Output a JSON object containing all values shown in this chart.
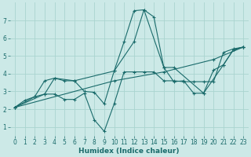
{
  "xlabel": "Humidex (Indice chaleur)",
  "xlim": [
    -0.5,
    23.5
  ],
  "ylim": [
    0.5,
    8.0
  ],
  "yticks": [
    1,
    2,
    3,
    4,
    5,
    6,
    7
  ],
  "xticks": [
    0,
    1,
    2,
    3,
    4,
    5,
    6,
    7,
    8,
    9,
    10,
    11,
    12,
    13,
    14,
    15,
    16,
    17,
    18,
    19,
    20,
    21,
    22,
    23
  ],
  "background_color": "#cce9e7",
  "grid_color": "#aad4d0",
  "line_color": "#1a6b6b",
  "lines": [
    {
      "x": [
        0,
        1,
        2,
        3,
        4,
        5,
        6,
        7,
        8,
        9,
        10,
        11,
        12,
        13,
        14,
        15,
        16,
        17,
        18,
        19,
        20,
        21,
        22,
        23
      ],
      "y": [
        2.1,
        2.5,
        2.7,
        3.6,
        3.75,
        3.6,
        3.6,
        3.0,
        2.95,
        2.3,
        4.15,
        5.8,
        7.55,
        7.6,
        7.2,
        4.35,
        3.55,
        3.6,
        2.9,
        2.9,
        4.2,
        4.5,
        5.35,
        5.5
      ]
    },
    {
      "x": [
        0,
        2,
        3,
        4,
        5,
        6,
        7,
        8,
        9,
        10,
        11,
        12,
        13,
        14,
        15,
        16,
        17,
        18,
        19,
        20,
        21,
        22,
        23
      ],
      "y": [
        2.1,
        2.7,
        2.85,
        2.85,
        2.55,
        2.55,
        2.9,
        1.4,
        0.75,
        2.3,
        4.1,
        4.1,
        4.1,
        4.1,
        3.6,
        3.6,
        3.55,
        3.55,
        3.55,
        3.55,
        5.2,
        5.4,
        5.5
      ]
    },
    {
      "x": [
        0,
        3,
        4,
        6,
        10,
        12,
        13,
        15,
        16,
        19,
        21,
        22,
        23
      ],
      "y": [
        2.1,
        2.85,
        3.75,
        3.6,
        4.15,
        5.8,
        7.6,
        4.35,
        4.35,
        2.9,
        4.5,
        5.35,
        5.5
      ]
    },
    {
      "x": [
        0,
        10,
        15,
        20,
        23
      ],
      "y": [
        2.1,
        3.6,
        4.1,
        4.8,
        5.5
      ]
    }
  ]
}
